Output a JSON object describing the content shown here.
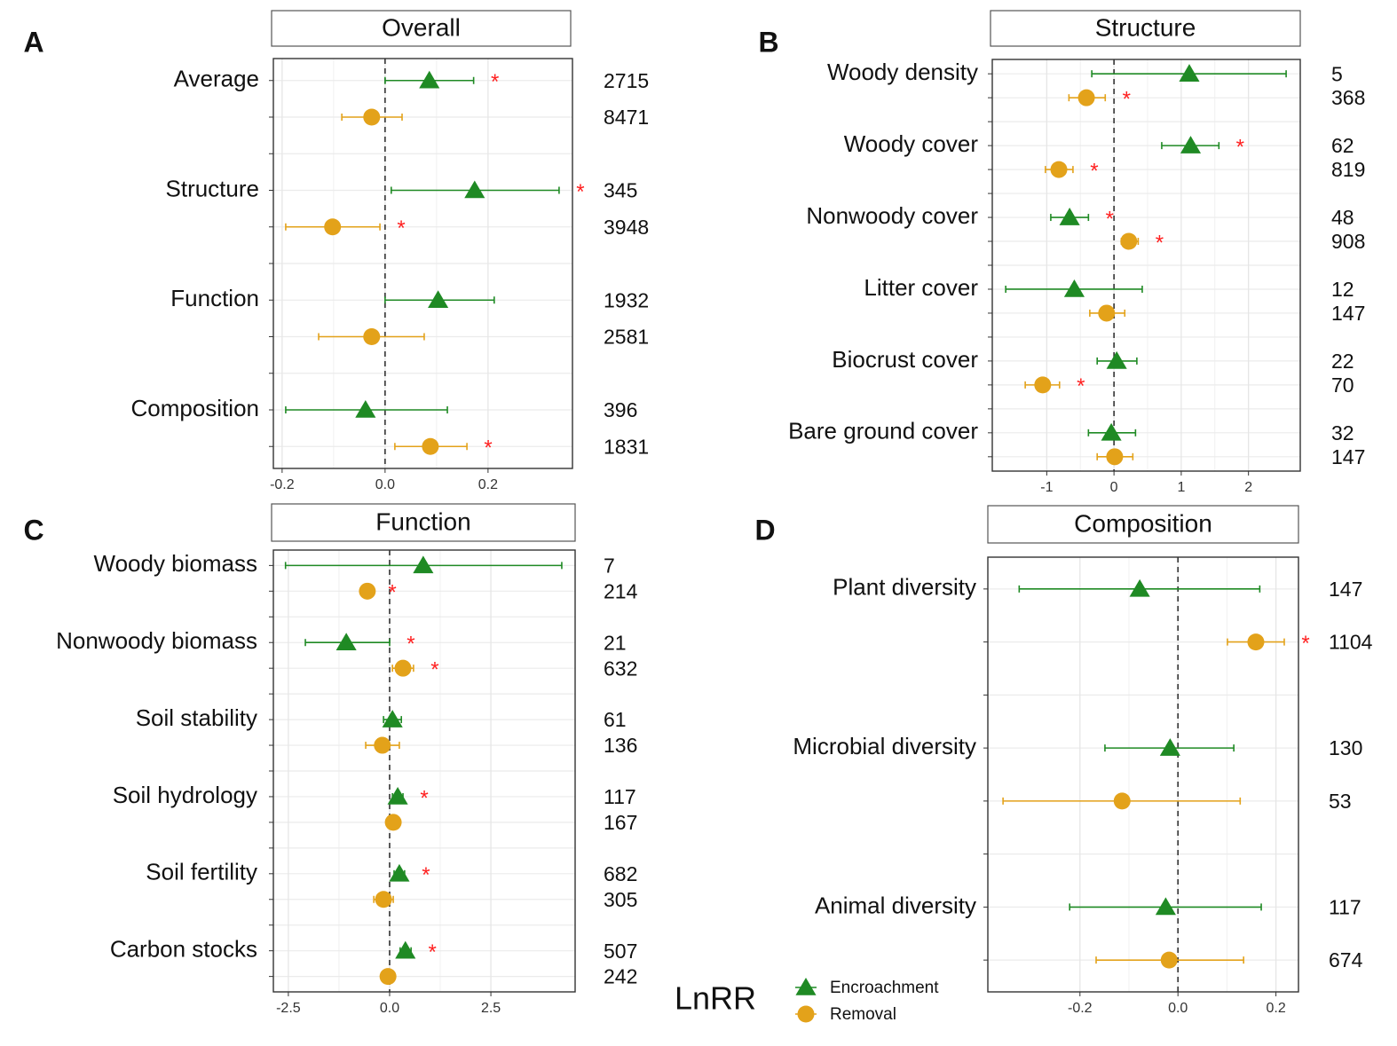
{
  "chart_data": [
    {
      "type": "forest",
      "panel": "A",
      "title": "Overall",
      "categories": [
        "Average",
        "Structure",
        "Function",
        "Composition"
      ],
      "series": [
        {
          "name": "Encroachment",
          "color": "#1f8a24",
          "marker": "triangle",
          "values": [
            0.086,
            0.174,
            0.103,
            -0.038
          ],
          "lower": [
            0.0,
            0.012,
            0.0,
            -0.193
          ],
          "upper": [
            0.172,
            0.338,
            0.212,
            0.121
          ],
          "n": [
            2715,
            345,
            1932,
            396
          ],
          "significant": [
            true,
            true,
            false,
            false
          ]
        },
        {
          "name": "Removal",
          "color": "#e3a21a",
          "marker": "circle",
          "values": [
            -0.026,
            -0.102,
            -0.026,
            0.088
          ],
          "lower": [
            -0.084,
            -0.193,
            -0.129,
            0.019
          ],
          "upper": [
            0.033,
            -0.01,
            0.076,
            0.159
          ],
          "n": [
            8471,
            3948,
            2581,
            1831
          ],
          "significant": [
            false,
            true,
            false,
            true
          ]
        }
      ],
      "xlim": [
        -0.217,
        0.364
      ],
      "xticks": [
        -0.2,
        {
          "value": 0,
          "label": "0.0"
        },
        0.2
      ],
      "reference_line": 0,
      "significance_label": "*",
      "significance_color": "#ff2020",
      "grid": true
    },
    {
      "type": "forest",
      "panel": "B",
      "title": "Structure",
      "categories": [
        "Woody density",
        "Woody cover",
        "Nonwoody cover",
        "Litter cover",
        "Biocrust cover",
        "Bare ground cover"
      ],
      "series": [
        {
          "name": "Encroachment",
          "color": "#1f8a24",
          "marker": "triangle",
          "values": [
            1.12,
            1.14,
            -0.66,
            -0.59,
            0.04,
            -0.04
          ],
          "lower": [
            -0.33,
            0.71,
            -0.94,
            -1.61,
            -0.25,
            -0.38
          ],
          "upper": [
            2.56,
            1.56,
            -0.38,
            0.42,
            0.34,
            0.32
          ],
          "n": [
            5,
            62,
            48,
            12,
            22,
            32
          ],
          "significant": [
            false,
            true,
            true,
            false,
            false,
            false
          ]
        },
        {
          "name": "Removal",
          "color": "#e3a21a",
          "marker": "circle",
          "values": [
            -0.41,
            -0.82,
            0.22,
            -0.11,
            -1.06,
            0.01
          ],
          "lower": [
            -0.67,
            -1.02,
            0.11,
            -0.36,
            -1.32,
            -0.25
          ],
          "upper": [
            -0.13,
            -0.61,
            0.36,
            0.16,
            -0.81,
            0.28
          ],
          "n": [
            368,
            819,
            908,
            147,
            70,
            147
          ],
          "significant": [
            true,
            true,
            true,
            false,
            true,
            false
          ]
        }
      ],
      "xlim": [
        -1.81,
        2.77
      ],
      "xticks": [
        -1,
        0,
        1,
        2
      ],
      "reference_line": 0,
      "significance_label": "*",
      "significance_color": "#ff2020",
      "grid": true
    },
    {
      "type": "forest",
      "panel": "C",
      "title": "Function",
      "categories": [
        "Woody biomass",
        "Nonwoody biomass",
        "Soil stability",
        "Soil hydrology",
        "Soil fertility",
        "Carbon stocks"
      ],
      "series": [
        {
          "name": "Encroachment",
          "color": "#1f8a24",
          "marker": "triangle",
          "values": [
            0.83,
            -1.07,
            0.07,
            0.2,
            0.24,
            0.39
          ],
          "lower": [
            -2.57,
            -2.08,
            -0.15,
            0.07,
            0.11,
            0.26
          ],
          "upper": [
            4.25,
            0.0,
            0.29,
            0.33,
            0.37,
            0.53
          ],
          "n": [
            7,
            21,
            61,
            117,
            682,
            507
          ],
          "significant": [
            false,
            true,
            false,
            true,
            true,
            true
          ]
        },
        {
          "name": "Removal",
          "color": "#e3a21a",
          "marker": "circle",
          "values": [
            -0.55,
            0.33,
            -0.18,
            0.09,
            -0.15,
            -0.04
          ],
          "lower": [
            -0.64,
            0.07,
            -0.59,
            -0.04,
            -0.39,
            -0.2
          ],
          "upper": [
            -0.46,
            0.59,
            0.24,
            0.22,
            0.09,
            0.11
          ],
          "n": [
            214,
            632,
            136,
            167,
            305,
            242
          ],
          "significant": [
            true,
            true,
            false,
            false,
            false,
            false
          ]
        }
      ],
      "xlim": [
        -2.87,
        4.58
      ],
      "xticks": [
        -2.5,
        {
          "value": 0,
          "label": "0.0"
        },
        2.5
      ],
      "reference_line": 0,
      "significance_label": "*",
      "significance_color": "#ff2020",
      "grid": true
    },
    {
      "type": "forest",
      "panel": "D",
      "title": "Composition",
      "categories": [
        "Plant diversity",
        "Microbial diversity",
        "Animal diversity"
      ],
      "series": [
        {
          "name": "Encroachment",
          "color": "#1f8a24",
          "marker": "triangle",
          "values": [
            -0.078,
            -0.016,
            -0.025
          ],
          "lower": [
            -0.324,
            -0.149,
            -0.221
          ],
          "upper": [
            0.167,
            0.114,
            0.17
          ],
          "n": [
            147,
            130,
            117
          ],
          "significant": [
            false,
            false,
            false
          ]
        },
        {
          "name": "Removal",
          "color": "#e3a21a",
          "marker": "circle",
          "values": [
            0.159,
            -0.114,
            -0.018
          ],
          "lower": [
            0.101,
            -0.357,
            -0.167
          ],
          "upper": [
            0.217,
            0.127,
            0.134
          ],
          "n": [
            1104,
            53,
            674
          ],
          "significant": [
            true,
            false,
            false
          ]
        }
      ],
      "xlim": [
        -0.388,
        0.246
      ],
      "xticks": [
        -0.2,
        {
          "value": 0,
          "label": "0.0"
        },
        0.2
      ],
      "reference_line": 0,
      "significance_label": "*",
      "significance_color": "#ff2020",
      "grid": true
    }
  ],
  "legend": {
    "title": "LnRR"
  }
}
